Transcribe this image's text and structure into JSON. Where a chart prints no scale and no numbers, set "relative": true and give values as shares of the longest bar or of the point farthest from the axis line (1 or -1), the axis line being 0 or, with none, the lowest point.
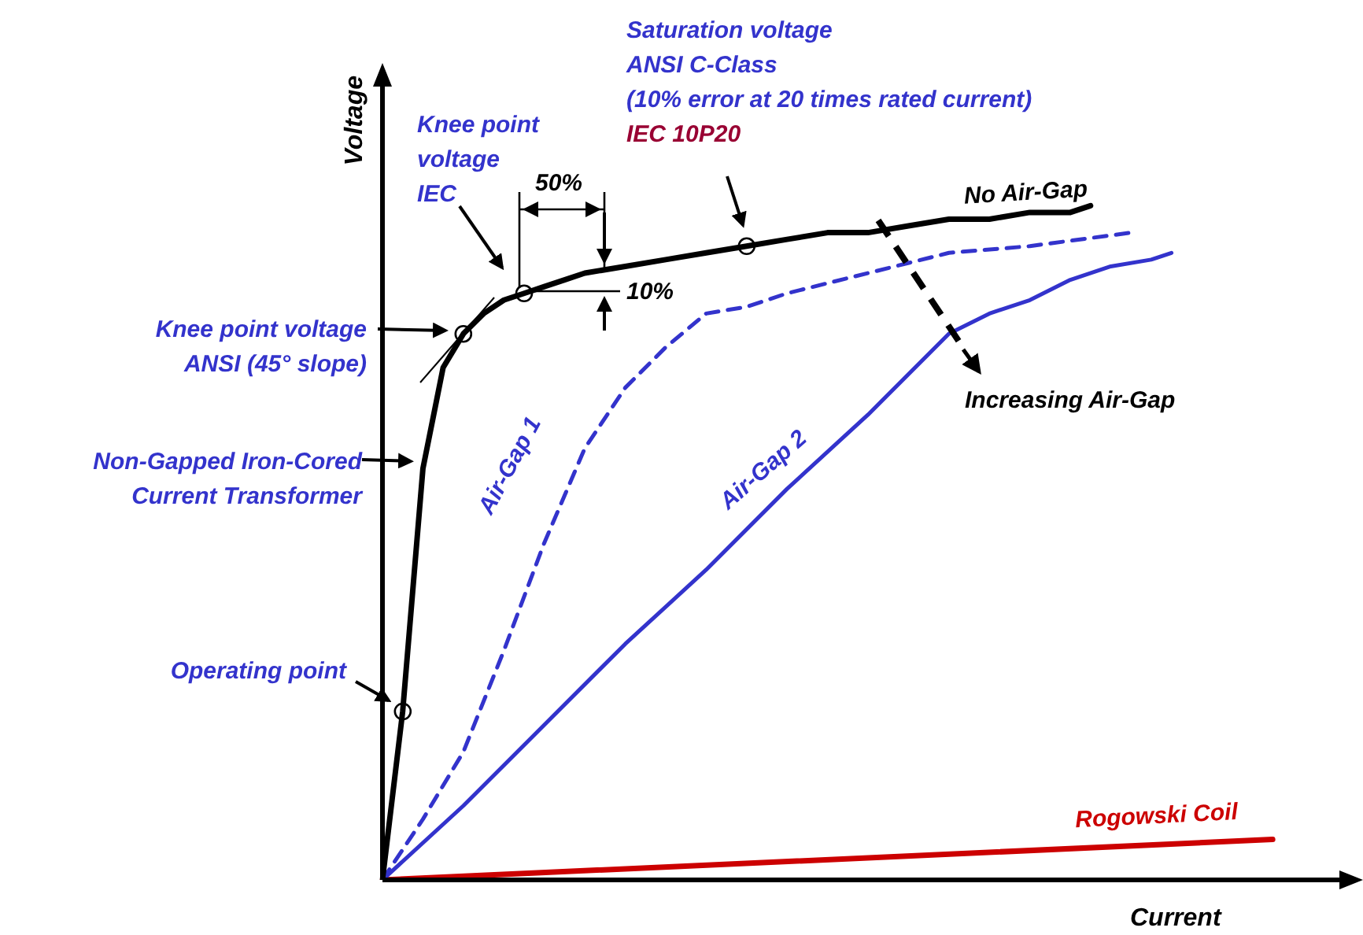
{
  "chart_data": {
    "type": "line",
    "relative": true,
    "legend": false,
    "xlabel": "Current",
    "ylabel": "Voltage",
    "categories": [
      null,
      null,
      null,
      null,
      null,
      null,
      null,
      null,
      null,
      null,
      null,
      null,
      null,
      null,
      null,
      null,
      null,
      null,
      null,
      null,
      null,
      null,
      null,
      null,
      null,
      null,
      null,
      null,
      null,
      null,
      null,
      null,
      null,
      null,
      null,
      null,
      null,
      null,
      null,
      null,
      null,
      null,
      null,
      null,
      null,
      null,
      null,
      null,
      null
    ],
    "series": [
      {
        "name": "No Air-Gap",
        "color": "#000000",
        "line_style": "solid",
        "values": [
          0,
          0.25,
          0.61,
          0.76,
          0.81,
          0.84,
          0.86,
          0.87,
          0.88,
          0.89,
          0.9,
          null,
          0.91,
          null,
          0.92,
          null,
          0.93,
          null,
          0.94,
          null,
          0.95,
          null,
          0.96,
          null,
          0.96,
          null,
          0.97,
          null,
          0.98,
          null,
          0.98,
          null,
          0.99,
          null,
          0.99,
          1,
          null,
          null,
          null,
          null,
          null,
          null,
          null,
          null,
          null,
          null,
          null,
          null,
          null
        ]
      },
      {
        "name": "Air-Gap 1",
        "color": "#3333cc",
        "line_style": "dashed",
        "values": [
          0,
          null,
          0.09,
          null,
          0.19,
          null,
          0.34,
          null,
          0.5,
          null,
          0.64,
          null,
          0.73,
          null,
          0.79,
          null,
          0.84,
          null,
          0.85,
          null,
          0.87,
          null,
          null,
          null,
          0.9,
          null,
          null,
          null,
          0.93,
          null,
          null,
          null,
          0.94,
          null,
          null,
          null,
          null,
          0.96,
          null,
          null,
          null,
          null,
          null,
          null,
          null,
          null,
          null,
          null,
          null
        ]
      },
      {
        "name": "Air-Gap 2",
        "color": "#3333cc",
        "line_style": "solid",
        "values": [
          0,
          null,
          null,
          null,
          0.11,
          null,
          null,
          null,
          0.23,
          null,
          null,
          null,
          0.35,
          null,
          null,
          null,
          0.46,
          null,
          null,
          null,
          0.58,
          null,
          null,
          null,
          0.69,
          null,
          null,
          null,
          0.81,
          null,
          0.84,
          null,
          0.86,
          null,
          0.89,
          null,
          0.91,
          null,
          0.92,
          0.93,
          null,
          null,
          null,
          null,
          null,
          null,
          null,
          null,
          null
        ]
      },
      {
        "name": "Rogowski Coil",
        "color": "#cc0000",
        "line_style": "solid",
        "values": [
          0,
          null,
          null,
          null,
          null,
          null,
          null,
          null,
          null,
          null,
          null,
          null,
          null,
          null,
          null,
          null,
          null,
          null,
          null,
          null,
          null,
          null,
          null,
          null,
          null,
          null,
          null,
          null,
          null,
          null,
          null,
          null,
          null,
          null,
          null,
          null,
          null,
          null,
          null,
          null,
          null,
          null,
          null,
          null,
          0.06,
          null,
          null,
          null,
          null
        ]
      }
    ],
    "annotations": [
      "Saturation voltage",
      "ANSI C-Class",
      "(10% error at 20 times rated current)",
      "IEC 10P20",
      "Knee point",
      "voltage",
      "IEC",
      "50%",
      "10%",
      "Knee point voltage",
      "ANSI (45° slope)",
      "Non-Gapped Iron-Cored",
      "Current Transformer",
      "Operating point",
      "Increasing Air-Gap"
    ]
  }
}
